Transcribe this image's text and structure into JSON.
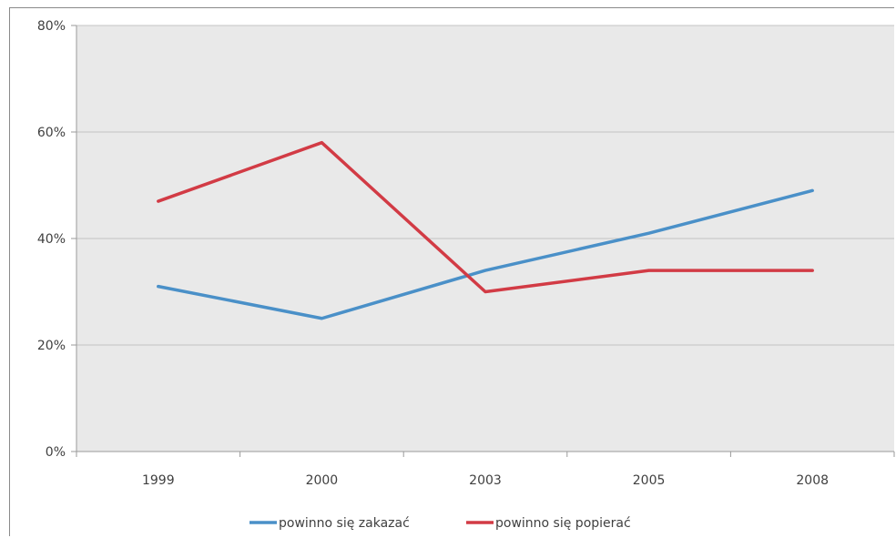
{
  "chart_data": {
    "type": "line",
    "categories": [
      "1999",
      "2000",
      "2003",
      "2005",
      "2008"
    ],
    "series": [
      {
        "name": "powinno się zakazać",
        "color": "#4a90c8",
        "values": [
          31,
          25,
          34,
          41,
          49
        ]
      },
      {
        "name": "powinno się popierać",
        "color": "#d23b45",
        "values": [
          47,
          58,
          30,
          34,
          34
        ]
      }
    ],
    "ylim": [
      0,
      80
    ],
    "yticks": [
      0,
      20,
      40,
      60,
      80
    ],
    "ytick_labels": [
      "0%",
      "20%",
      "40%",
      "60%",
      "80%"
    ],
    "grid": true,
    "legend_position": "bottom",
    "plot_background": "#e9e9e9"
  }
}
